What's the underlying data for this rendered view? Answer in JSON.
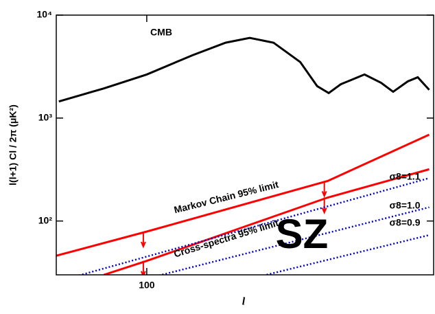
{
  "chart_data": {
    "type": "line",
    "xlabel": "l",
    "ylabel": "l(l+1) Cl / 2π  (μK²)",
    "xlim": [
      50,
      900
    ],
    "ylim": [
      30,
      10000
    ],
    "log_x": true,
    "log_y": true,
    "xticks": [
      100
    ],
    "yticks": [
      {
        "value": 100,
        "label": "10²"
      },
      {
        "value": 1000,
        "label": "10³"
      },
      {
        "value": 10000,
        "label": "10⁴"
      }
    ],
    "series": [
      {
        "name": "CMB",
        "color": "#000000",
        "style": "solid",
        "x": [
          51,
          72,
          100,
          142,
          183,
          220,
          264,
          324,
          369,
          403,
          442,
          530,
          602,
          660,
          738,
          797,
          870
        ],
        "values": [
          1450,
          1940,
          2650,
          4080,
          5400,
          6010,
          5400,
          3500,
          2040,
          1750,
          2130,
          2650,
          2200,
          1800,
          2270,
          2490,
          1880
        ]
      },
      {
        "name": "Markov Chain 95% limit",
        "color": "#ff0000",
        "style": "solid",
        "x": [
          50,
          100,
          400,
          870
        ],
        "values": [
          46,
          79,
          245,
          690
        ]
      },
      {
        "name": "Cross-spectra 95% limit",
        "color": "#ff0000",
        "style": "solid",
        "x": [
          72,
          100,
          400,
          870
        ],
        "values": [
          30,
          41,
          169,
          318
        ]
      },
      {
        "name": "σ8=1.1",
        "color": "#0000cc",
        "style": "dotted",
        "x": [
          58,
          870
        ],
        "values": [
          29,
          261
        ]
      },
      {
        "name": "σ8=1.0",
        "color": "#0000cc",
        "style": "dotted",
        "x": [
          107,
          870
        ],
        "values": [
          29,
          136
        ]
      },
      {
        "name": "σ8=0.9",
        "color": "#0000cc",
        "style": "dotted",
        "x": [
          238,
          870
        ],
        "values": [
          29,
          73
        ]
      }
    ],
    "annotations": [
      "SZ"
    ]
  }
}
